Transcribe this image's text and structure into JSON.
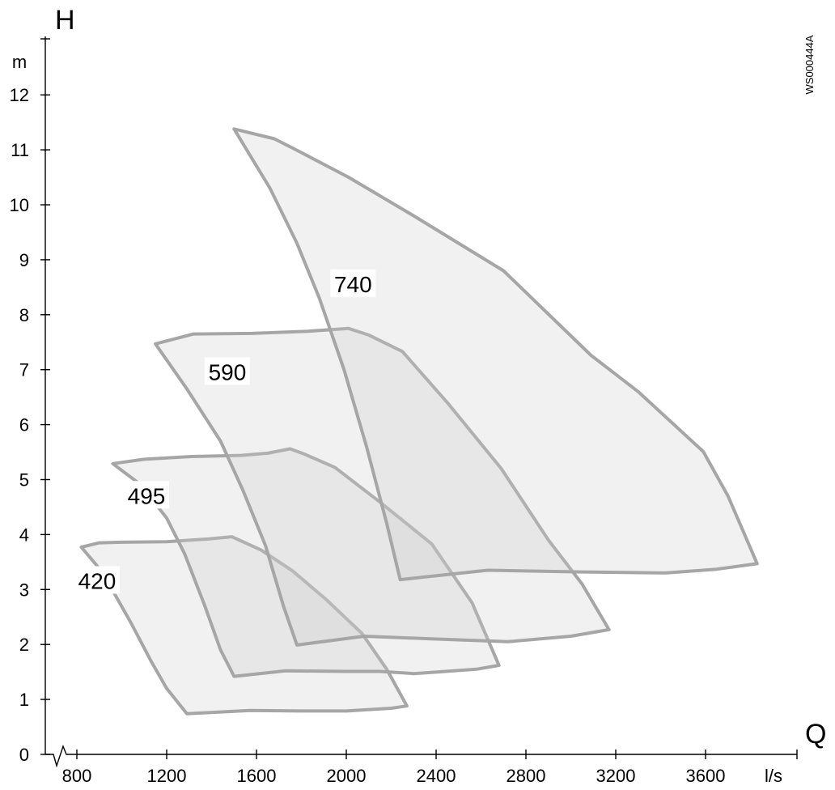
{
  "chart_data": {
    "type": "area",
    "xlabel": "Q",
    "x_unit": "l/s",
    "ylabel": "H",
    "y_unit": "m",
    "figure_code": "WS000444A",
    "xlim": [
      700,
      4000
    ],
    "ylim": [
      0,
      12.5
    ],
    "x_axis_break_label": "0",
    "x_ticks": [
      800,
      1200,
      1600,
      2000,
      2400,
      2800,
      3200,
      3600
    ],
    "y_ticks": [
      0,
      1,
      2,
      3,
      4,
      5,
      6,
      7,
      8,
      9,
      10,
      11,
      12
    ],
    "grid": false,
    "series": [
      {
        "name": "420",
        "points": [
          [
            820,
            3.77
          ],
          [
            900,
            3.85
          ],
          [
            1000,
            3.86
          ],
          [
            1200,
            3.87
          ],
          [
            1390,
            3.92
          ],
          [
            1490,
            3.96
          ],
          [
            1620,
            3.72
          ],
          [
            1760,
            3.34
          ],
          [
            1910,
            2.82
          ],
          [
            2070,
            2.2
          ],
          [
            2180,
            1.55
          ],
          [
            2270,
            0.88
          ],
          [
            2200,
            0.84
          ],
          [
            2000,
            0.79
          ],
          [
            1800,
            0.79
          ],
          [
            1570,
            0.8
          ],
          [
            1290,
            0.74
          ],
          [
            1200,
            1.2
          ],
          [
            1130,
            1.7
          ],
          [
            1040,
            2.4
          ],
          [
            950,
            3.05
          ],
          [
            890,
            3.43
          ]
        ]
      },
      {
        "name": "495",
        "points": [
          [
            960,
            5.29
          ],
          [
            1100,
            5.37
          ],
          [
            1310,
            5.42
          ],
          [
            1530,
            5.44
          ],
          [
            1650,
            5.48
          ],
          [
            1750,
            5.56
          ],
          [
            1810,
            5.47
          ],
          [
            1950,
            5.22
          ],
          [
            2150,
            4.59
          ],
          [
            2380,
            3.83
          ],
          [
            2560,
            2.76
          ],
          [
            2680,
            1.62
          ],
          [
            2580,
            1.55
          ],
          [
            2410,
            1.5
          ],
          [
            2300,
            1.47
          ],
          [
            2150,
            1.51
          ],
          [
            2000,
            1.51
          ],
          [
            1730,
            1.52
          ],
          [
            1500,
            1.42
          ],
          [
            1440,
            1.9
          ],
          [
            1370,
            2.7
          ],
          [
            1280,
            3.65
          ],
          [
            1200,
            4.3
          ],
          [
            1080,
            4.92
          ]
        ]
      },
      {
        "name": "590",
        "points": [
          [
            1150,
            7.47
          ],
          [
            1320,
            7.65
          ],
          [
            1580,
            7.66
          ],
          [
            1830,
            7.7
          ],
          [
            2010,
            7.75
          ],
          [
            2100,
            7.63
          ],
          [
            2250,
            7.33
          ],
          [
            2450,
            6.4
          ],
          [
            2690,
            5.2
          ],
          [
            2900,
            3.9
          ],
          [
            3050,
            3.1
          ],
          [
            3170,
            2.27
          ],
          [
            3000,
            2.15
          ],
          [
            2720,
            2.05
          ],
          [
            2390,
            2.1
          ],
          [
            2080,
            2.15
          ],
          [
            1780,
            1.99
          ],
          [
            1720,
            2.7
          ],
          [
            1640,
            3.8
          ],
          [
            1540,
            4.8
          ],
          [
            1440,
            5.7
          ],
          [
            1290,
            6.65
          ]
        ]
      },
      {
        "name": "740",
        "points": [
          [
            1500,
            11.38
          ],
          [
            1680,
            11.2
          ],
          [
            1800,
            10.95
          ],
          [
            2010,
            10.5
          ],
          [
            2300,
            9.8
          ],
          [
            2700,
            8.8
          ],
          [
            3090,
            7.26
          ],
          [
            3300,
            6.6
          ],
          [
            3590,
            5.51
          ],
          [
            3700,
            4.7
          ],
          [
            3830,
            3.47
          ],
          [
            3650,
            3.37
          ],
          [
            3420,
            3.3
          ],
          [
            3050,
            3.32
          ],
          [
            2630,
            3.35
          ],
          [
            2240,
            3.18
          ],
          [
            2180,
            4.2
          ],
          [
            2090,
            5.6
          ],
          [
            1990,
            7.0
          ],
          [
            1880,
            8.3
          ],
          [
            1780,
            9.3
          ],
          [
            1660,
            10.3
          ]
        ]
      }
    ]
  }
}
